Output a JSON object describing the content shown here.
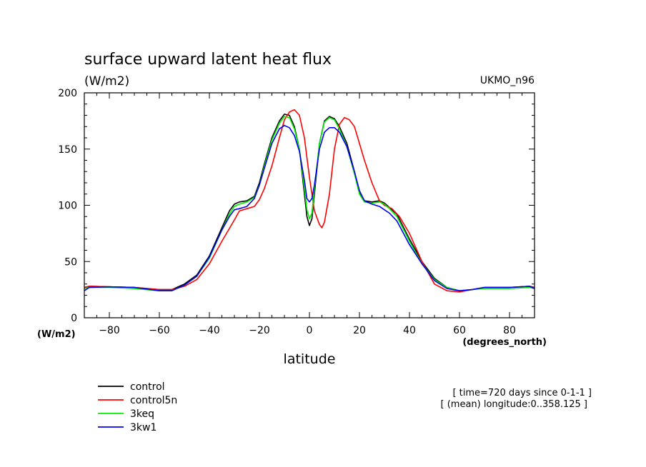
{
  "chart_data": {
    "type": "line",
    "title": "surface upward latent heat flux",
    "units_label": "(W/m2)",
    "source_label": "UKMO_n96",
    "xlabel": "latitude",
    "x_units_label": "(degrees_north)",
    "y_units_label": "(W/m2)",
    "xlim": [
      -90,
      90
    ],
    "ylim": [
      0,
      200
    ],
    "x_ticks": [
      -80,
      -60,
      -40,
      -20,
      0,
      20,
      40,
      60,
      80
    ],
    "y_ticks": [
      0,
      50,
      100,
      150,
      200
    ],
    "grid": false,
    "legend_position": "bottom-left",
    "annotation_lines": [
      "[ time=720 days since 0-1-1 ]",
      "[ (mean) longitude:0..358.125 ]"
    ],
    "series": [
      {
        "name": "control",
        "color": "#000000",
        "x": [
          -90,
          -88,
          -80,
          -70,
          -60,
          -55,
          -50,
          -45,
          -40,
          -35,
          -32,
          -30,
          -28,
          -25,
          -22,
          -20,
          -18,
          -15,
          -12,
          -10,
          -8,
          -6,
          -4,
          -2,
          -1,
          0,
          1,
          2,
          4,
          6,
          8,
          10,
          12,
          15,
          18,
          20,
          22,
          25,
          28,
          30,
          32,
          35,
          40,
          45,
          50,
          55,
          60,
          65,
          70,
          80,
          88,
          90
        ],
        "y": [
          27,
          28,
          27.5,
          27,
          25,
          25,
          30,
          38,
          55,
          80,
          95,
          101,
          103,
          104,
          108,
          120,
          137,
          160,
          175,
          181,
          180,
          170,
          150,
          110,
          90,
          82,
          88,
          110,
          155,
          175,
          179,
          177,
          170,
          155,
          130,
          112,
          104,
          103,
          104,
          102,
          98,
          92,
          70,
          50,
          35,
          27,
          24,
          25,
          27,
          27,
          28,
          27
        ]
      },
      {
        "name": "control5n",
        "color": "#ff0000",
        "x": [
          -90,
          -88,
          -80,
          -70,
          -60,
          -55,
          -50,
          -45,
          -40,
          -35,
          -30,
          -28,
          -25,
          -22,
          -20,
          -18,
          -15,
          -12,
          -10,
          -8,
          -6,
          -4,
          -2,
          0,
          2,
          4,
          5,
          6,
          8,
          10,
          12,
          14,
          16,
          18,
          20,
          22,
          25,
          28,
          30,
          33,
          36,
          40,
          45,
          50,
          55,
          60,
          65,
          70,
          80,
          88,
          90
        ],
        "y": [
          27,
          28,
          27.5,
          27,
          25,
          25,
          28,
          34,
          48,
          68,
          87,
          95,
          97,
          99,
          105,
          115,
          135,
          160,
          176,
          183,
          185,
          180,
          160,
          125,
          95,
          83,
          80,
          85,
          110,
          150,
          172,
          178,
          176,
          170,
          155,
          140,
          120,
          104,
          100,
          97,
          90,
          75,
          50,
          30,
          24,
          23,
          25,
          27,
          27,
          28,
          27
        ]
      },
      {
        "name": "3keq",
        "color": "#00ee00",
        "x": [
          -90,
          -88,
          -80,
          -70,
          -60,
          -55,
          -50,
          -45,
          -40,
          -35,
          -32,
          -30,
          -28,
          -25,
          -22,
          -20,
          -18,
          -15,
          -12,
          -10,
          -8,
          -6,
          -4,
          -2,
          -1,
          0,
          1,
          2,
          4,
          6,
          8,
          10,
          12,
          15,
          18,
          20,
          22,
          25,
          28,
          30,
          32,
          35,
          40,
          45,
          50,
          55,
          60,
          65,
          70,
          80,
          88,
          90
        ],
        "y": [
          26,
          27,
          27,
          26,
          24,
          24,
          29,
          37,
          53,
          78,
          92,
          99,
          101,
          103,
          107,
          118,
          135,
          158,
          173,
          179,
          178,
          168,
          150,
          115,
          96,
          88,
          93,
          115,
          155,
          174,
          178,
          176,
          168,
          152,
          128,
          110,
          103,
          102,
          103,
          101,
          97,
          90,
          68,
          48,
          34,
          27,
          24,
          25,
          26,
          26,
          27,
          26
        ]
      },
      {
        "name": "3kw1",
        "color": "#0000ee",
        "x": [
          -90,
          -88,
          -80,
          -70,
          -60,
          -55,
          -50,
          -45,
          -40,
          -35,
          -32,
          -30,
          -28,
          -25,
          -22,
          -20,
          -18,
          -15,
          -12,
          -10,
          -8,
          -6,
          -4,
          -2,
          -1,
          0,
          1,
          2,
          4,
          6,
          8,
          10,
          12,
          15,
          18,
          20,
          22,
          25,
          28,
          30,
          32,
          35,
          40,
          45,
          50,
          55,
          60,
          65,
          70,
          80,
          88,
          90
        ],
        "y": [
          24,
          27,
          27.5,
          27,
          24,
          24,
          29,
          37,
          54,
          78,
          90,
          96,
          97,
          99,
          106,
          118,
          133,
          155,
          168,
          171,
          169,
          162,
          148,
          122,
          106,
          103,
          106,
          118,
          150,
          165,
          169,
          169,
          165,
          152,
          130,
          113,
          104,
          101,
          99,
          96,
          93,
          86,
          65,
          48,
          33,
          26,
          24,
          25,
          27,
          27,
          28,
          26
        ]
      }
    ]
  }
}
